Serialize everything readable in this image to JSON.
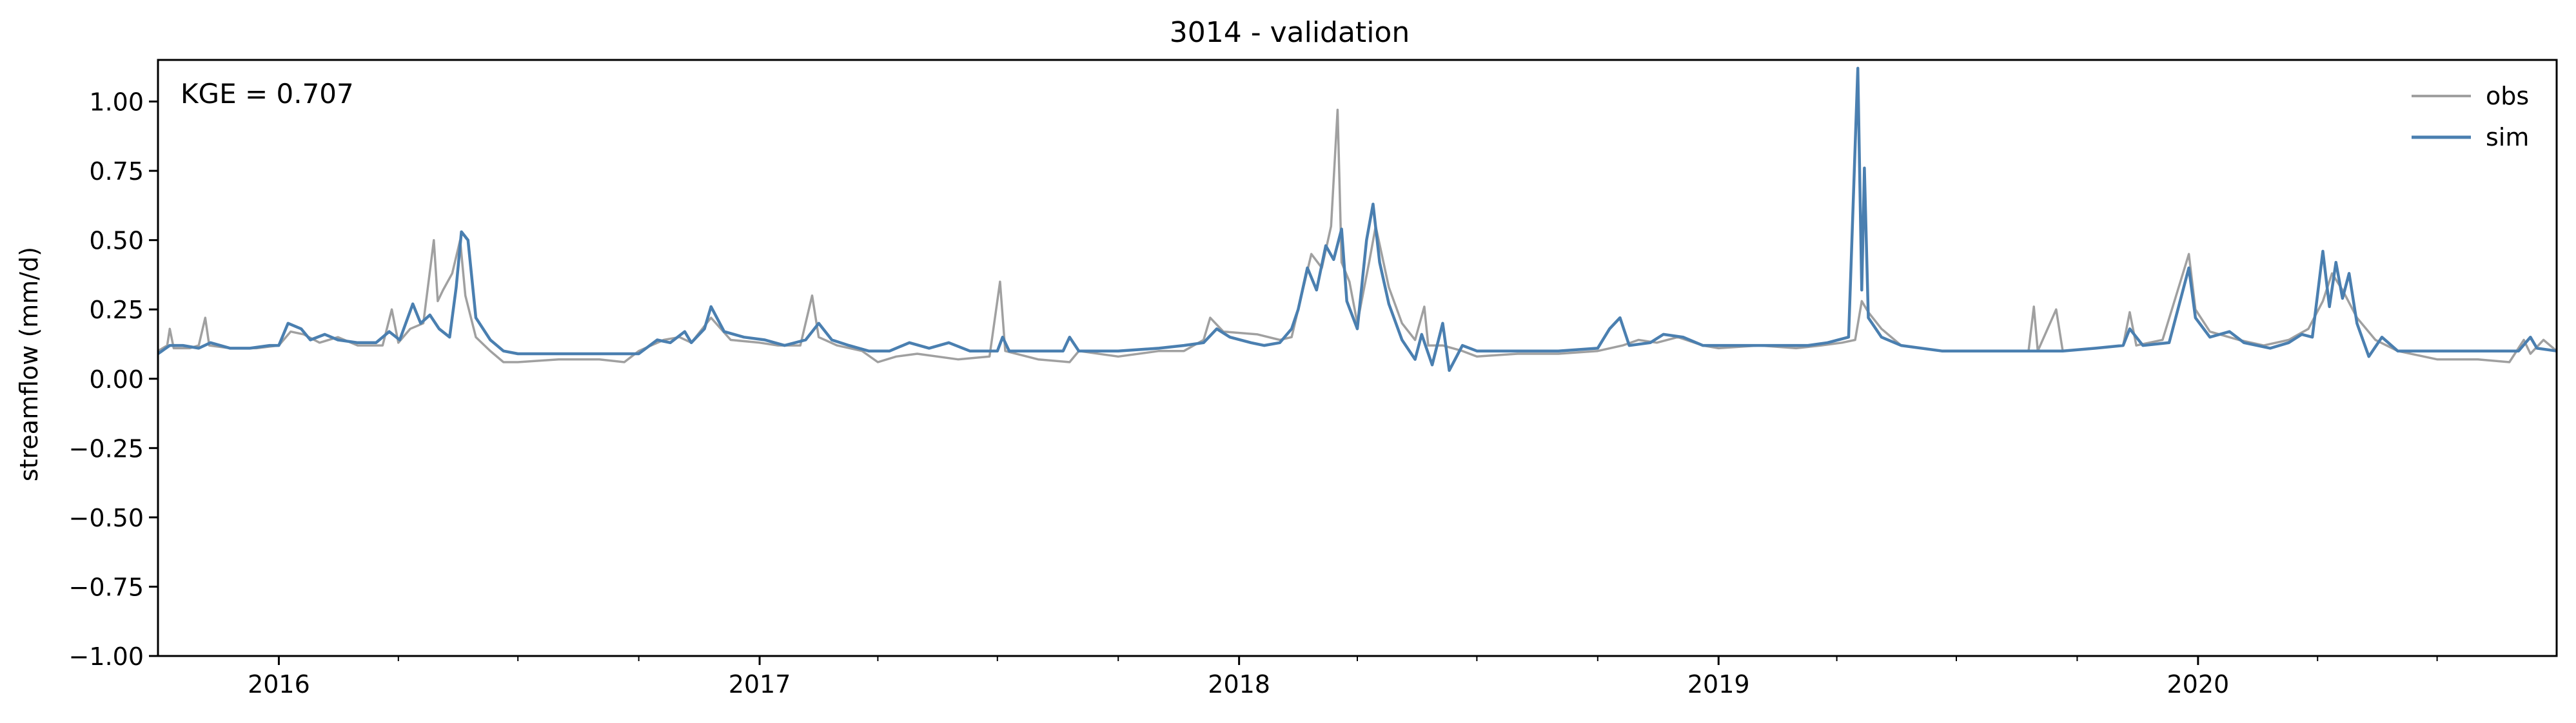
{
  "chart_data": {
    "type": "line",
    "title": "3014 - validation",
    "xlabel": "",
    "ylabel": "streamflow (mm/d)",
    "annotation": "KGE = 0.707",
    "xlim": [
      "2015-10-01",
      "2020-09-30"
    ],
    "ylim": [
      -1.0,
      1.15
    ],
    "x_major_ticks": [
      "2016-01-01",
      "2017-01-01",
      "2018-01-01",
      "2019-01-01",
      "2020-01-01"
    ],
    "x_tick_labels": [
      "2016",
      "2017",
      "2018",
      "2019",
      "2020"
    ],
    "y_ticks": [
      -1.0,
      -0.75,
      -0.5,
      -0.25,
      0.0,
      0.25,
      0.5,
      0.75,
      1.0
    ],
    "y_tick_labels": [
      "−1.00",
      "−0.75",
      "−0.50",
      "−0.25",
      "0.00",
      "0.25",
      "0.50",
      "0.75",
      "1.00"
    ],
    "grid": false,
    "legend_position": "top-right",
    "series": [
      {
        "name": "obs",
        "color": "#a0a0a0",
        "points": [
          [
            "2015-10-01",
            0.1
          ],
          [
            "2015-10-08",
            0.12
          ],
          [
            "2015-10-10",
            0.18
          ],
          [
            "2015-10-13",
            0.11
          ],
          [
            "2015-10-25",
            0.11
          ],
          [
            "2015-11-01",
            0.12
          ],
          [
            "2015-11-06",
            0.22
          ],
          [
            "2015-11-09",
            0.12
          ],
          [
            "2015-11-25",
            0.11
          ],
          [
            "2015-12-15",
            0.11
          ],
          [
            "2016-01-01",
            0.12
          ],
          [
            "2016-01-10",
            0.17
          ],
          [
            "2016-01-20",
            0.16
          ],
          [
            "2016-02-01",
            0.13
          ],
          [
            "2016-02-15",
            0.15
          ],
          [
            "2016-03-01",
            0.12
          ],
          [
            "2016-03-20",
            0.12
          ],
          [
            "2016-03-27",
            0.25
          ],
          [
            "2016-04-01",
            0.13
          ],
          [
            "2016-04-10",
            0.18
          ],
          [
            "2016-04-20",
            0.2
          ],
          [
            "2016-04-28",
            0.5
          ],
          [
            "2016-05-01",
            0.28
          ],
          [
            "2016-05-05",
            0.32
          ],
          [
            "2016-05-12",
            0.38
          ],
          [
            "2016-05-18",
            0.5
          ],
          [
            "2016-05-22",
            0.3
          ],
          [
            "2016-05-30",
            0.15
          ],
          [
            "2016-06-10",
            0.1
          ],
          [
            "2016-06-20",
            0.06
          ],
          [
            "2016-07-01",
            0.06
          ],
          [
            "2016-08-01",
            0.07
          ],
          [
            "2016-09-01",
            0.07
          ],
          [
            "2016-09-20",
            0.06
          ],
          [
            "2016-10-01",
            0.1
          ],
          [
            "2016-10-20",
            0.14
          ],
          [
            "2016-11-01",
            0.15
          ],
          [
            "2016-11-10",
            0.13
          ],
          [
            "2016-11-25",
            0.22
          ],
          [
            "2016-12-10",
            0.14
          ],
          [
            "2017-01-01",
            0.13
          ],
          [
            "2017-01-15",
            0.12
          ],
          [
            "2017-02-01",
            0.12
          ],
          [
            "2017-02-10",
            0.3
          ],
          [
            "2017-02-15",
            0.15
          ],
          [
            "2017-03-01",
            0.12
          ],
          [
            "2017-03-20",
            0.1
          ],
          [
            "2017-04-01",
            0.06
          ],
          [
            "2017-04-15",
            0.08
          ],
          [
            "2017-05-01",
            0.09
          ],
          [
            "2017-06-01",
            0.07
          ],
          [
            "2017-06-25",
            0.08
          ],
          [
            "2017-07-03",
            0.35
          ],
          [
            "2017-07-07",
            0.1
          ],
          [
            "2017-08-01",
            0.07
          ],
          [
            "2017-08-25",
            0.06
          ],
          [
            "2017-09-01",
            0.1
          ],
          [
            "2017-10-01",
            0.08
          ],
          [
            "2017-11-01",
            0.1
          ],
          [
            "2017-11-20",
            0.1
          ],
          [
            "2017-12-05",
            0.14
          ],
          [
            "2017-12-10",
            0.22
          ],
          [
            "2017-12-20",
            0.17
          ],
          [
            "2018-01-15",
            0.16
          ],
          [
            "2018-02-01",
            0.14
          ],
          [
            "2018-02-10",
            0.15
          ],
          [
            "2018-02-25",
            0.45
          ],
          [
            "2018-03-05",
            0.4
          ],
          [
            "2018-03-12",
            0.55
          ],
          [
            "2018-03-17",
            0.97
          ],
          [
            "2018-03-20",
            0.42
          ],
          [
            "2018-03-26",
            0.35
          ],
          [
            "2018-04-01",
            0.2
          ],
          [
            "2018-04-10",
            0.42
          ],
          [
            "2018-04-15",
            0.55
          ],
          [
            "2018-04-25",
            0.33
          ],
          [
            "2018-05-05",
            0.2
          ],
          [
            "2018-05-15",
            0.14
          ],
          [
            "2018-05-22",
            0.26
          ],
          [
            "2018-05-25",
            0.12
          ],
          [
            "2018-06-05",
            0.12
          ],
          [
            "2018-06-20",
            0.1
          ],
          [
            "2018-07-01",
            0.08
          ],
          [
            "2018-08-01",
            0.09
          ],
          [
            "2018-09-01",
            0.09
          ],
          [
            "2018-10-01",
            0.1
          ],
          [
            "2018-10-20",
            0.12
          ],
          [
            "2018-11-01",
            0.14
          ],
          [
            "2018-11-15",
            0.13
          ],
          [
            "2018-12-01",
            0.15
          ],
          [
            "2018-12-20",
            0.12
          ],
          [
            "2019-01-01",
            0.11
          ],
          [
            "2019-02-01",
            0.12
          ],
          [
            "2019-03-01",
            0.11
          ],
          [
            "2019-03-20",
            0.12
          ],
          [
            "2019-04-05",
            0.13
          ],
          [
            "2019-04-15",
            0.14
          ],
          [
            "2019-04-20",
            0.28
          ],
          [
            "2019-04-25",
            0.24
          ],
          [
            "2019-05-05",
            0.18
          ],
          [
            "2019-05-20",
            0.12
          ],
          [
            "2019-06-20",
            0.1
          ],
          [
            "2019-07-20",
            0.1
          ],
          [
            "2019-08-25",
            0.1
          ],
          [
            "2019-08-29",
            0.26
          ],
          [
            "2019-09-01",
            0.1
          ],
          [
            "2019-09-15",
            0.25
          ],
          [
            "2019-09-20",
            0.1
          ],
          [
            "2019-10-15",
            0.11
          ],
          [
            "2019-11-05",
            0.12
          ],
          [
            "2019-11-10",
            0.24
          ],
          [
            "2019-11-15",
            0.12
          ],
          [
            "2019-12-05",
            0.14
          ],
          [
            "2019-12-25",
            0.45
          ],
          [
            "2019-12-30",
            0.25
          ],
          [
            "2020-01-10",
            0.17
          ],
          [
            "2020-02-01",
            0.14
          ],
          [
            "2020-02-20",
            0.12
          ],
          [
            "2020-03-10",
            0.14
          ],
          [
            "2020-03-25",
            0.18
          ],
          [
            "2020-04-05",
            0.28
          ],
          [
            "2020-04-12",
            0.38
          ],
          [
            "2020-04-20",
            0.32
          ],
          [
            "2020-05-01",
            0.22
          ],
          [
            "2020-05-15",
            0.14
          ],
          [
            "2020-06-01",
            0.1
          ],
          [
            "2020-07-01",
            0.07
          ],
          [
            "2020-08-01",
            0.07
          ],
          [
            "2020-08-25",
            0.06
          ],
          [
            "2020-09-05",
            0.14
          ],
          [
            "2020-09-10",
            0.09
          ],
          [
            "2020-09-20",
            0.14
          ],
          [
            "2020-09-30",
            0.1
          ]
        ]
      },
      {
        "name": "sim",
        "color": "#4a7fb0",
        "points": [
          [
            "2015-10-01",
            0.09
          ],
          [
            "2015-10-10",
            0.12
          ],
          [
            "2015-10-20",
            0.12
          ],
          [
            "2015-11-01",
            0.11
          ],
          [
            "2015-11-10",
            0.13
          ],
          [
            "2015-11-25",
            0.11
          ],
          [
            "2015-12-10",
            0.11
          ],
          [
            "2015-12-25",
            0.12
          ],
          [
            "2016-01-01",
            0.12
          ],
          [
            "2016-01-08",
            0.2
          ],
          [
            "2016-01-18",
            0.18
          ],
          [
            "2016-01-25",
            0.14
          ],
          [
            "2016-02-05",
            0.16
          ],
          [
            "2016-02-15",
            0.14
          ],
          [
            "2016-03-01",
            0.13
          ],
          [
            "2016-03-15",
            0.13
          ],
          [
            "2016-03-25",
            0.17
          ],
          [
            "2016-04-02",
            0.14
          ],
          [
            "2016-04-12",
            0.27
          ],
          [
            "2016-04-18",
            0.2
          ],
          [
            "2016-04-25",
            0.23
          ],
          [
            "2016-05-02",
            0.18
          ],
          [
            "2016-05-10",
            0.15
          ],
          [
            "2016-05-15",
            0.33
          ],
          [
            "2016-05-19",
            0.53
          ],
          [
            "2016-05-24",
            0.5
          ],
          [
            "2016-05-30",
            0.22
          ],
          [
            "2016-06-10",
            0.14
          ],
          [
            "2016-06-20",
            0.1
          ],
          [
            "2016-07-01",
            0.09
          ],
          [
            "2016-08-01",
            0.09
          ],
          [
            "2016-09-01",
            0.09
          ],
          [
            "2016-10-01",
            0.09
          ],
          [
            "2016-10-15",
            0.14
          ],
          [
            "2016-10-25",
            0.13
          ],
          [
            "2016-11-05",
            0.17
          ],
          [
            "2016-11-10",
            0.13
          ],
          [
            "2016-11-20",
            0.18
          ],
          [
            "2016-11-25",
            0.26
          ],
          [
            "2016-12-05",
            0.17
          ],
          [
            "2016-12-20",
            0.15
          ],
          [
            "2017-01-05",
            0.14
          ],
          [
            "2017-01-20",
            0.12
          ],
          [
            "2017-02-05",
            0.14
          ],
          [
            "2017-02-15",
            0.2
          ],
          [
            "2017-02-25",
            0.14
          ],
          [
            "2017-03-10",
            0.12
          ],
          [
            "2017-03-25",
            0.1
          ],
          [
            "2017-04-10",
            0.1
          ],
          [
            "2017-04-25",
            0.13
          ],
          [
            "2017-05-10",
            0.11
          ],
          [
            "2017-05-25",
            0.13
          ],
          [
            "2017-06-10",
            0.1
          ],
          [
            "2017-07-01",
            0.1
          ],
          [
            "2017-07-05",
            0.15
          ],
          [
            "2017-07-10",
            0.1
          ],
          [
            "2017-08-01",
            0.1
          ],
          [
            "2017-08-20",
            0.1
          ],
          [
            "2017-08-25",
            0.15
          ],
          [
            "2017-09-01",
            0.1
          ],
          [
            "2017-10-01",
            0.1
          ],
          [
            "2017-11-01",
            0.11
          ],
          [
            "2017-11-20",
            0.12
          ],
          [
            "2017-12-05",
            0.13
          ],
          [
            "2017-12-15",
            0.18
          ],
          [
            "2017-12-25",
            0.15
          ],
          [
            "2018-01-10",
            0.13
          ],
          [
            "2018-01-20",
            0.12
          ],
          [
            "2018-02-01",
            0.13
          ],
          [
            "2018-02-10",
            0.18
          ],
          [
            "2018-02-15",
            0.25
          ],
          [
            "2018-02-22",
            0.4
          ],
          [
            "2018-03-01",
            0.32
          ],
          [
            "2018-03-08",
            0.48
          ],
          [
            "2018-03-14",
            0.43
          ],
          [
            "2018-03-20",
            0.54
          ],
          [
            "2018-03-24",
            0.28
          ],
          [
            "2018-04-01",
            0.18
          ],
          [
            "2018-04-08",
            0.5
          ],
          [
            "2018-04-13",
            0.63
          ],
          [
            "2018-04-18",
            0.42
          ],
          [
            "2018-04-25",
            0.27
          ],
          [
            "2018-05-05",
            0.14
          ],
          [
            "2018-05-15",
            0.07
          ],
          [
            "2018-05-20",
            0.16
          ],
          [
            "2018-05-28",
            0.05
          ],
          [
            "2018-06-05",
            0.2
          ],
          [
            "2018-06-10",
            0.03
          ],
          [
            "2018-06-20",
            0.12
          ],
          [
            "2018-07-01",
            0.1
          ],
          [
            "2018-08-01",
            0.1
          ],
          [
            "2018-09-01",
            0.1
          ],
          [
            "2018-10-01",
            0.11
          ],
          [
            "2018-10-10",
            0.18
          ],
          [
            "2018-10-18",
            0.22
          ],
          [
            "2018-10-25",
            0.12
          ],
          [
            "2018-11-10",
            0.13
          ],
          [
            "2018-11-20",
            0.16
          ],
          [
            "2018-12-05",
            0.15
          ],
          [
            "2018-12-20",
            0.12
          ],
          [
            "2019-01-15",
            0.12
          ],
          [
            "2019-02-15",
            0.12
          ],
          [
            "2019-03-10",
            0.12
          ],
          [
            "2019-03-25",
            0.13
          ],
          [
            "2019-04-10",
            0.15
          ],
          [
            "2019-04-17",
            1.12
          ],
          [
            "2019-04-20",
            0.32
          ],
          [
            "2019-04-22",
            0.76
          ],
          [
            "2019-04-25",
            0.22
          ],
          [
            "2019-05-05",
            0.15
          ],
          [
            "2019-05-20",
            0.12
          ],
          [
            "2019-06-20",
            0.1
          ],
          [
            "2019-07-20",
            0.1
          ],
          [
            "2019-08-20",
            0.1
          ],
          [
            "2019-09-20",
            0.1
          ],
          [
            "2019-10-15",
            0.11
          ],
          [
            "2019-11-05",
            0.12
          ],
          [
            "2019-11-10",
            0.18
          ],
          [
            "2019-11-20",
            0.12
          ],
          [
            "2019-12-10",
            0.13
          ],
          [
            "2019-12-25",
            0.4
          ],
          [
            "2019-12-30",
            0.22
          ],
          [
            "2020-01-10",
            0.15
          ],
          [
            "2020-01-25",
            0.17
          ],
          [
            "2020-02-05",
            0.13
          ],
          [
            "2020-02-25",
            0.11
          ],
          [
            "2020-03-10",
            0.13
          ],
          [
            "2020-03-20",
            0.16
          ],
          [
            "2020-03-28",
            0.15
          ],
          [
            "2020-04-05",
            0.46
          ],
          [
            "2020-04-10",
            0.26
          ],
          [
            "2020-04-15",
            0.42
          ],
          [
            "2020-04-20",
            0.29
          ],
          [
            "2020-04-25",
            0.38
          ],
          [
            "2020-05-01",
            0.2
          ],
          [
            "2020-05-10",
            0.08
          ],
          [
            "2020-05-20",
            0.15
          ],
          [
            "2020-06-01",
            0.1
          ],
          [
            "2020-07-01",
            0.1
          ],
          [
            "2020-08-01",
            0.1
          ],
          [
            "2020-09-01",
            0.1
          ],
          [
            "2020-09-10",
            0.15
          ],
          [
            "2020-09-15",
            0.11
          ],
          [
            "2020-09-30",
            0.1
          ]
        ]
      }
    ]
  }
}
